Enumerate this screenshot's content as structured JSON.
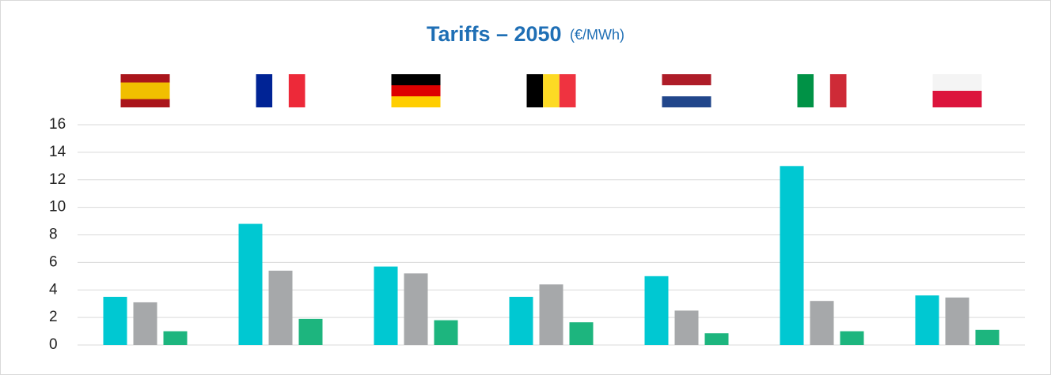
{
  "chart_data": {
    "type": "bar",
    "title": "Tariffs – 2050",
    "unit_label": "(€/MWh)",
    "categories": [
      null,
      null,
      null,
      null,
      null,
      null,
      null
    ],
    "series": [
      {
        "color": "#00c8d2",
        "values": [
          3.5,
          8.8,
          5.7,
          3.5,
          5.0,
          13.0,
          3.6
        ]
      },
      {
        "color": "#a6a8aa",
        "values": [
          3.1,
          5.4,
          5.2,
          4.4,
          2.5,
          3.2,
          3.45
        ]
      },
      {
        "color": "#1db57e",
        "values": [
          1.0,
          1.9,
          1.8,
          1.65,
          0.85,
          1.0,
          1.1
        ]
      }
    ],
    "ylim": [
      0,
      16
    ],
    "yticks": [
      0,
      2,
      4,
      6,
      8,
      10,
      12,
      14,
      16
    ],
    "grid": true
  }
}
